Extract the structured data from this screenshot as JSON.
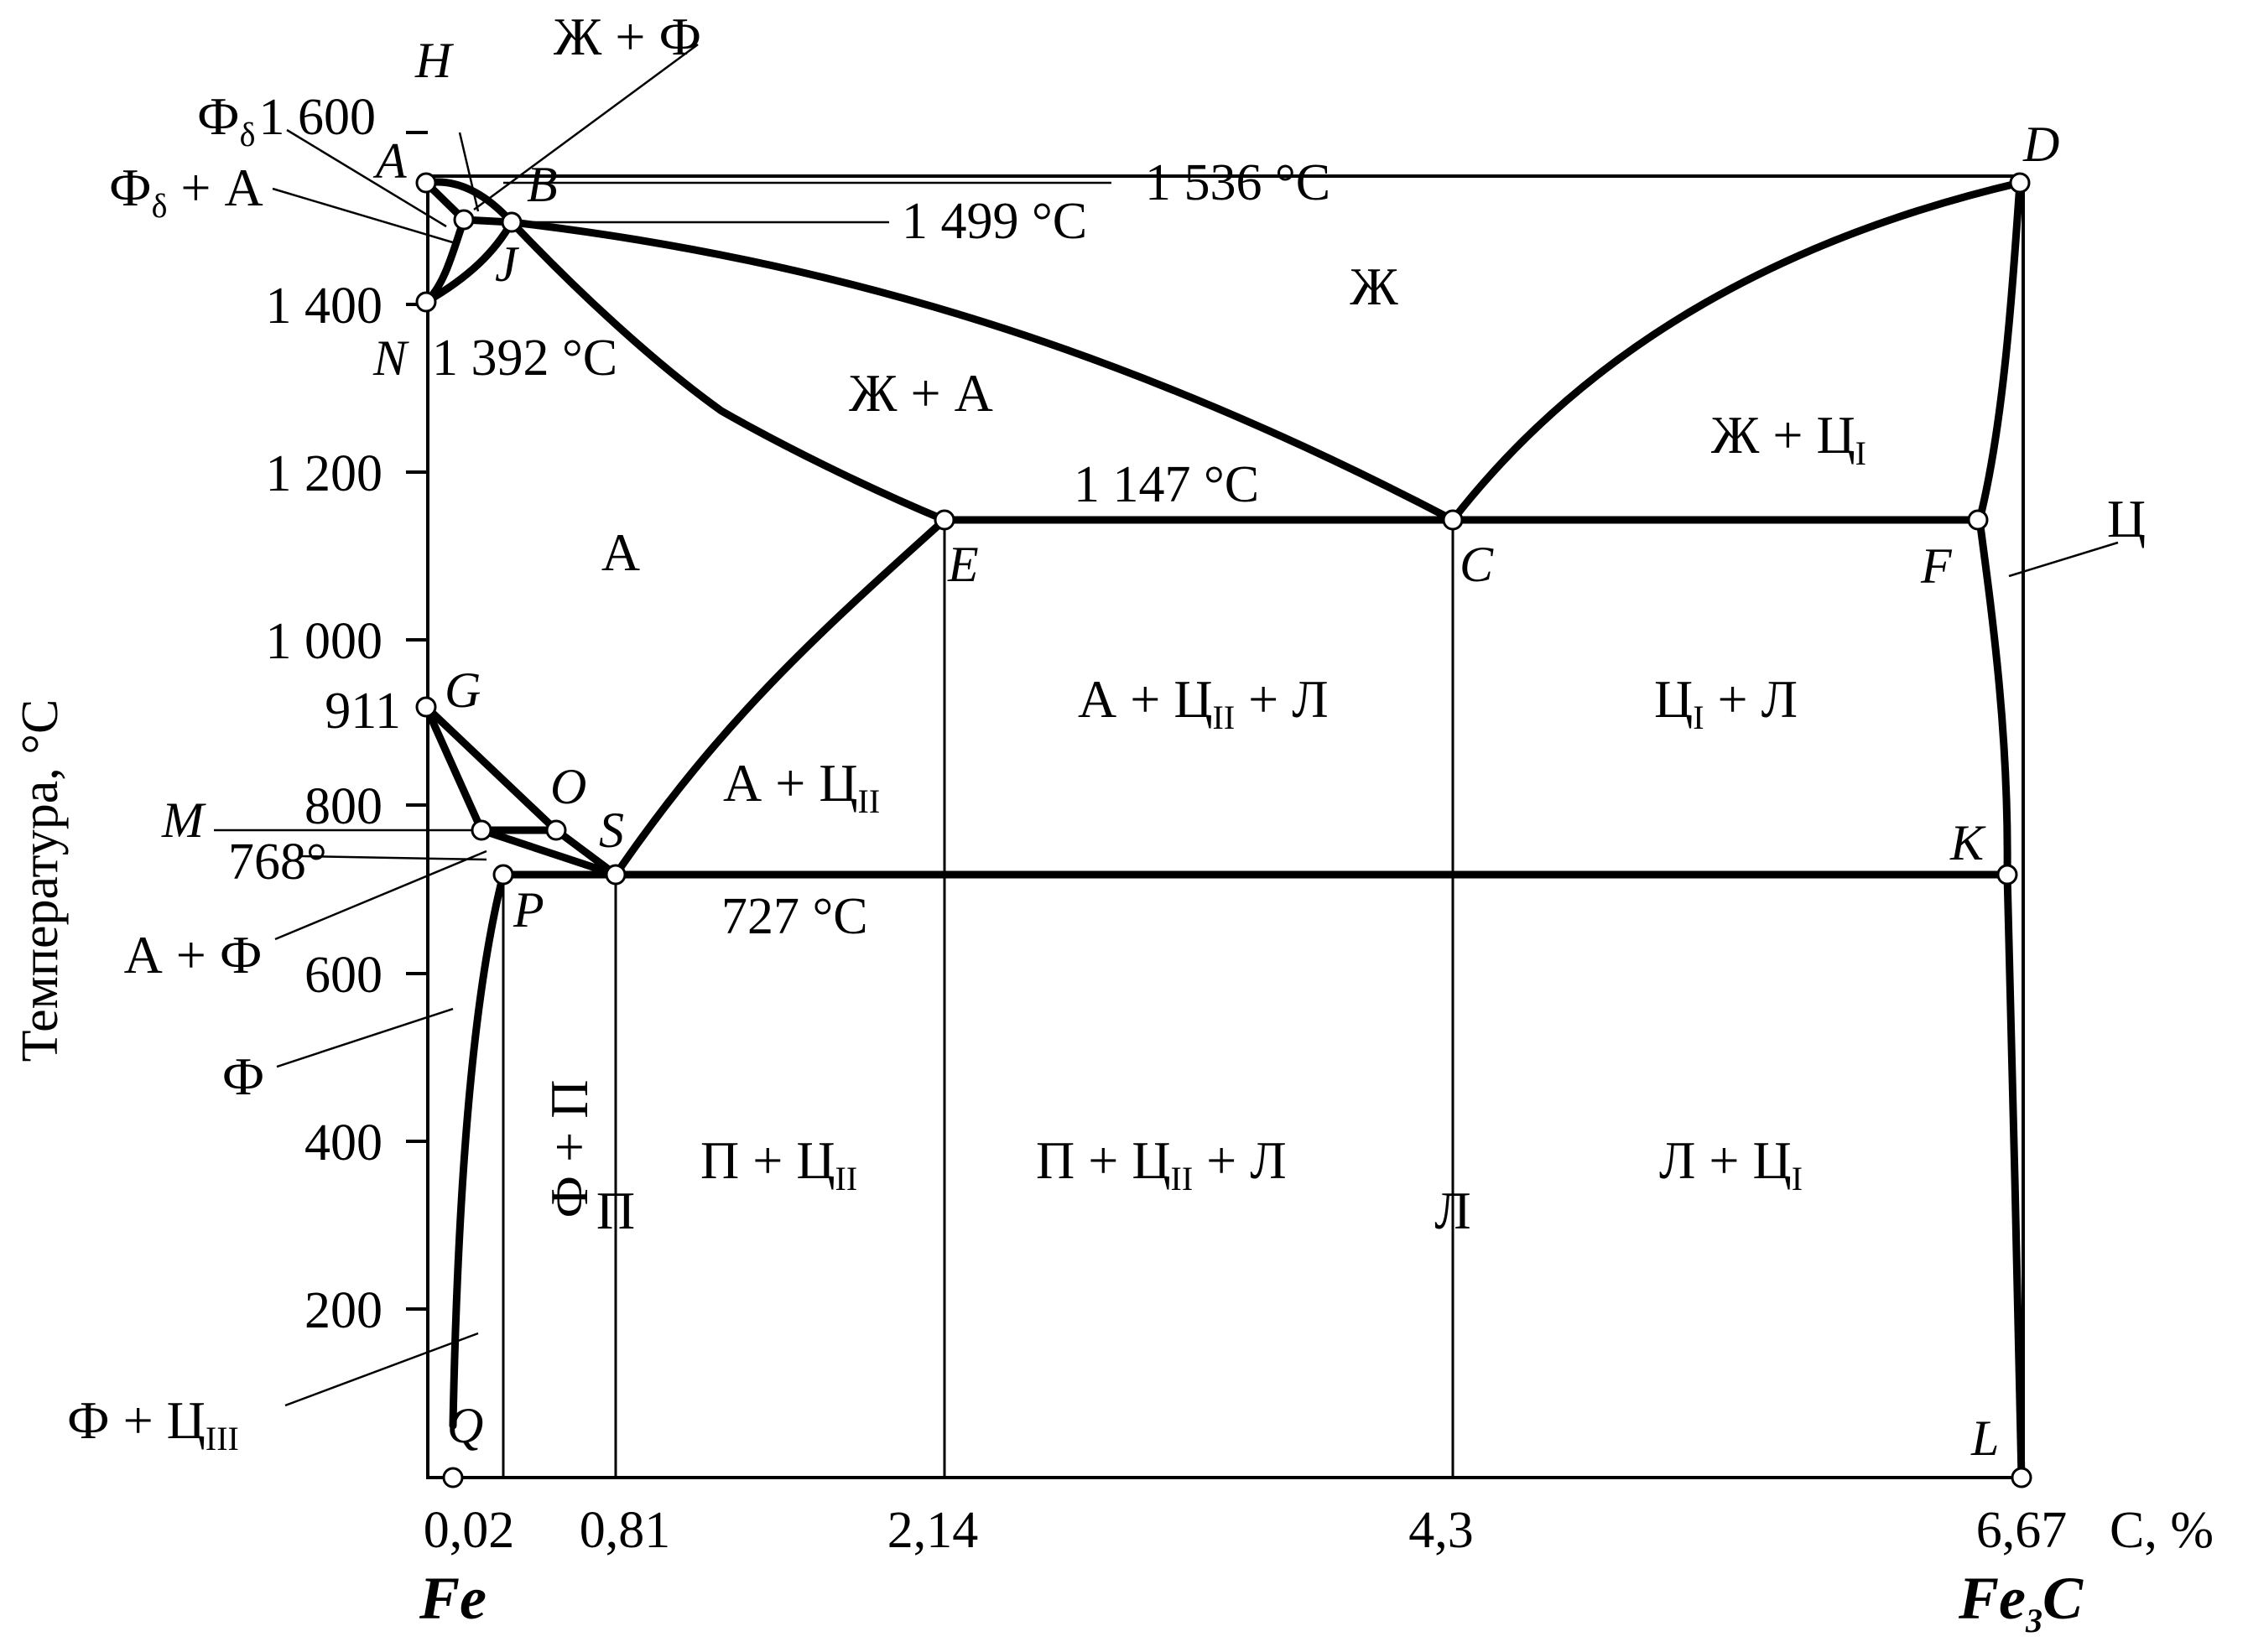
{
  "diagram": {
    "x_axis": {
      "label": "С, %",
      "ticks": [
        "0,02",
        "0,81",
        "2,14",
        "4,3",
        "6,67"
      ],
      "left_end": "Fe",
      "right_end_main": "Fe",
      "right_end_sub": "3",
      "right_end_suffix": "C"
    },
    "y_axis": {
      "label": "Температура, °С",
      "ticks": [
        "1 600",
        "1 400",
        "1 200",
        "1 000",
        "800",
        "600",
        "400",
        "200"
      ],
      "extra_tick": "911"
    },
    "temperatures": {
      "t1536": "1 536 °С",
      "t1499": "1 499 °С",
      "t1392": "1 392 °С",
      "t1147": "1 147 °С",
      "t768": "768°",
      "t727": "727 °С"
    },
    "points": {
      "A": "A",
      "H": "H",
      "B": "B",
      "J": "J",
      "N": "N",
      "D": "D",
      "E": "E",
      "C": "C",
      "F": "F",
      "G": "G",
      "O": "O",
      "M": "M",
      "S": "S",
      "P": "P",
      "K": "K",
      "Q": "Q",
      "L": "L"
    },
    "regions": {
      "liquid": "Ж",
      "liquid_ferrite": "Ж + Ф",
      "liquid_austenite": "Ж + А",
      "austenite": "А",
      "ferrite": "Ф",
      "pearlite": "П",
      "ledeburite": "Л",
      "cementite": "Ц",
      "ferrite_pearlite": "Ф + П",
      "austenite_ferrite": "А + Ф",
      "liq_cem_1": {
        "main": "Ж + Ц",
        "sub": "I"
      },
      "aus_cem_2": {
        "main": "А + Ц",
        "sub": "II"
      },
      "aus_cem_2_led": {
        "main": "А + Ц",
        "sub": "II",
        "suffix": " + Л"
      },
      "cem_1_led": {
        "main": "Ц",
        "sub": "I",
        "suffix": " + Л"
      },
      "pearl_cem_2": {
        "main": "П + Ц",
        "sub": "II"
      },
      "pearl_cem_2_led": {
        "main": "П + Ц",
        "sub": "II",
        "suffix": " + Л"
      },
      "led_cem_1": {
        "main": "Л + Ц",
        "sub": "I"
      },
      "ferr_cem_3": {
        "main": "Ф + Ц",
        "sub": "III"
      },
      "delta_ferrite": {
        "main": "Ф",
        "sub": "δ"
      },
      "delta_ferrite_aus": {
        "main": "Ф",
        "sub": "δ",
        "suffix": " + А"
      }
    }
  }
}
